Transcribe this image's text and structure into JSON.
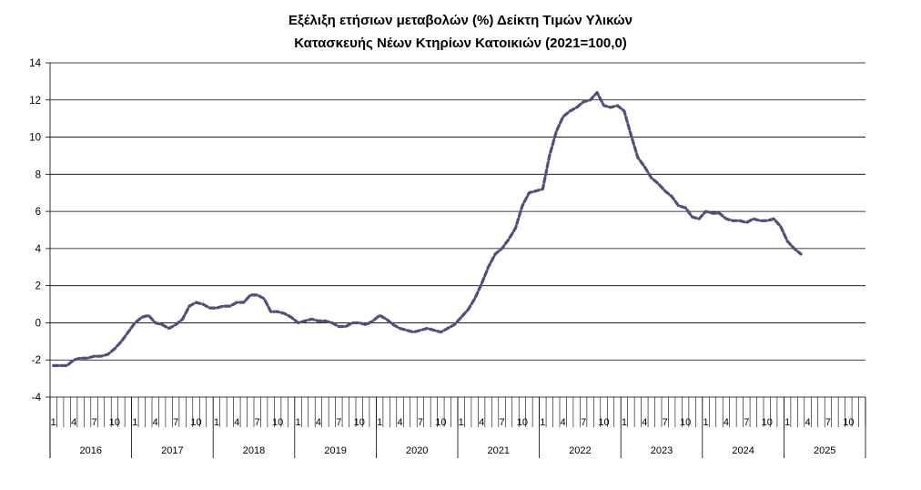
{
  "chart_data": {
    "type": "line",
    "title_line1": "Εξέλιξη ετήσιων μεταβολών (%) Δείκτη Τιμών Υλικών",
    "title_line2": "Κατασκευής Νέων Κτηρίων Κατοικιών (2021=100,0)",
    "xlabel": "",
    "ylabel": "",
    "ylim": [
      -4,
      14
    ],
    "yticks": [
      "-4",
      "-2",
      "0",
      "2",
      "4",
      "6",
      "8",
      "10",
      "12",
      "14"
    ],
    "grid": true,
    "years": [
      "2016",
      "2017",
      "2018",
      "2019",
      "2020",
      "2021",
      "2022",
      "2023",
      "2024",
      "2025"
    ],
    "month_labels": [
      "1",
      "4",
      "7",
      "10"
    ],
    "colors": {
      "line": "#5B4A7C",
      "grid": "#000000"
    },
    "series": [
      {
        "values": [
          -2.3,
          -2.3,
          -2.3,
          -2.0,
          -1.9,
          -1.9,
          -1.8,
          -1.8,
          -1.7,
          -1.4,
          -1.0,
          -0.5,
          0.0,
          0.3,
          0.4,
          0.0,
          -0.1,
          -0.3,
          -0.1,
          0.2,
          0.9,
          1.1,
          1.0,
          0.8,
          0.8,
          0.9,
          0.9,
          1.1,
          1.1,
          1.5,
          1.5,
          1.3,
          0.6,
          0.6,
          0.5,
          0.3,
          0.0,
          0.1,
          0.2,
          0.1,
          0.1,
          0.0,
          -0.2,
          -0.2,
          0.0,
          0.0,
          -0.1,
          0.1,
          0.4,
          0.2,
          -0.1,
          -0.3,
          -0.4,
          -0.5,
          -0.4,
          -0.3,
          -0.4,
          -0.5,
          -0.3,
          -0.1,
          0.3,
          0.7,
          1.3,
          2.1,
          3.0,
          3.7,
          4.0,
          4.5,
          5.1,
          6.3,
          7.0,
          7.1,
          7.2,
          9.0,
          10.3,
          11.1,
          11.4,
          11.6,
          11.9,
          12.0,
          12.4,
          11.7,
          11.6,
          11.7,
          11.4,
          10.1,
          8.9,
          8.4,
          7.8,
          7.5,
          7.1,
          6.8,
          6.3,
          6.2,
          5.7,
          5.6,
          6.0,
          5.9,
          5.9,
          5.6,
          5.5,
          5.5,
          5.4,
          5.6,
          5.5,
          5.5,
          5.6,
          5.2,
          4.4,
          4.0,
          3.7
        ]
      }
    ]
  }
}
